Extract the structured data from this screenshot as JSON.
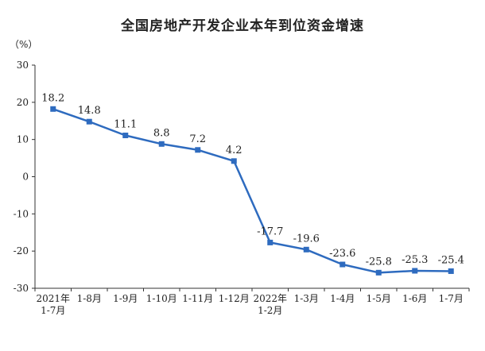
{
  "chart_data": {
    "type": "line",
    "title": "全国房地产开发企业本年到位资金增速",
    "y_unit": "（%）",
    "categories": [
      [
        "2021年",
        "1-7月"
      ],
      [
        "1-8月"
      ],
      [
        "1-9月"
      ],
      [
        "1-10月"
      ],
      [
        "1-11月"
      ],
      [
        "1-12月"
      ],
      [
        "2022年",
        "1-2月"
      ],
      [
        "1-3月"
      ],
      [
        "1-4月"
      ],
      [
        "1-5月"
      ],
      [
        "1-6月"
      ],
      [
        "1-7月"
      ]
    ],
    "series": [
      {
        "values": [
          18.2,
          14.8,
          11.1,
          8.8,
          7.2,
          4.2,
          -17.7,
          -19.6,
          -23.6,
          -25.8,
          -25.3,
          -25.4
        ],
        "labels": [
          "18.2",
          "14.8",
          "11.1",
          "8.8",
          "7.2",
          "4.2",
          "-17.7",
          "-19.6",
          "-23.6",
          "-25.8",
          "-25.3",
          "-25.4"
        ],
        "color": "#2e6bbf"
      }
    ],
    "ylim": [
      -30,
      30
    ],
    "yticks": [
      30,
      20,
      10,
      0,
      -10,
      -20,
      -30
    ],
    "grid": false,
    "legend": "none"
  }
}
